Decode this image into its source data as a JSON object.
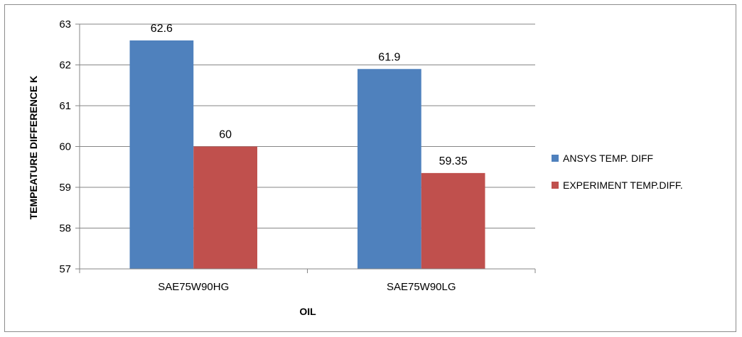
{
  "chart_data": {
    "type": "bar",
    "categories": [
      "SAE75W90HG",
      "SAE75W90LG"
    ],
    "series": [
      {
        "name": "ANSYS TEMP. DIFF",
        "values": [
          62.6,
          61.9
        ],
        "labels": [
          "62.6",
          "61.9"
        ],
        "color": "#4F81BD"
      },
      {
        "name": "EXPERIMENT TEMP.DIFF.",
        "values": [
          60,
          59.35
        ],
        "labels": [
          "60",
          "59.35"
        ],
        "color": "#C0504D"
      }
    ],
    "xlabel": "OIL",
    "ylabel": "TEMPEATURE DIFFERENCE K",
    "ylim": [
      57,
      63
    ],
    "yticks": [
      57,
      58,
      59,
      60,
      61,
      62,
      63
    ],
    "grid": true,
    "legend_position": "right"
  }
}
